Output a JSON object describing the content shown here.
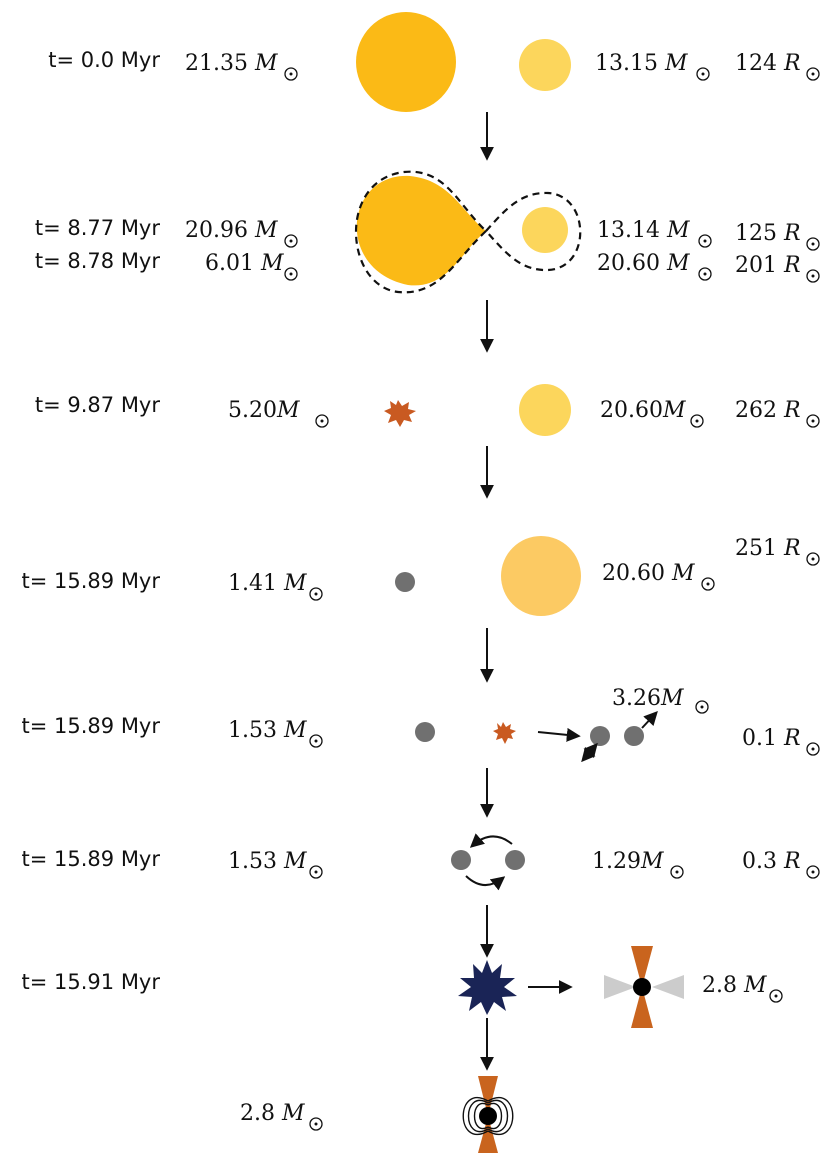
{
  "colors": {
    "star_primary": "#fbba16",
    "star_secondary": "#fcd65c",
    "giant": "#fcca63",
    "supernova": "#c95a21",
    "compact_remnant": "#707070",
    "kilonova": "#1a2456",
    "jet": "#c9641e",
    "disk": "#cccccc",
    "black_hole": "#000000"
  },
  "symbols": {
    "mass": "M",
    "radius": "R"
  },
  "stages": [
    {
      "time": "t= 0.0 Myr",
      "left_mass": "21.35 ",
      "right_mass": "13.15 ",
      "radius": "124 "
    },
    {
      "time": "t= 8.77 Myr",
      "time_2": "t= 8.78 Myr",
      "left_mass": "20.96 ",
      "left_mass_2": "6.01 ",
      "right_mass": "13.14 ",
      "right_mass_2": "20.60 ",
      "radius": "125 ",
      "radius_2": "201 "
    },
    {
      "time": "t= 9.87 Myr",
      "left_mass": "5.20",
      "right_mass": "20.60",
      "radius": "262 "
    },
    {
      "time": "t= 15.89 Myr",
      "left_mass": "1.41 ",
      "right_mass": "20.60 ",
      "radius": "251 "
    },
    {
      "time": "t= 15.89 Myr",
      "left_mass": "1.53 ",
      "kick_mass": "3.26",
      "radius": "0.1 "
    },
    {
      "time": "t= 15.89 Myr",
      "left_mass": "1.53 ",
      "right_mass": "1.29",
      "radius": "0.3 "
    },
    {
      "time": "t= 15.91 Myr",
      "right_mass": "2.8 "
    },
    {
      "left_mass": "2.8 "
    }
  ]
}
